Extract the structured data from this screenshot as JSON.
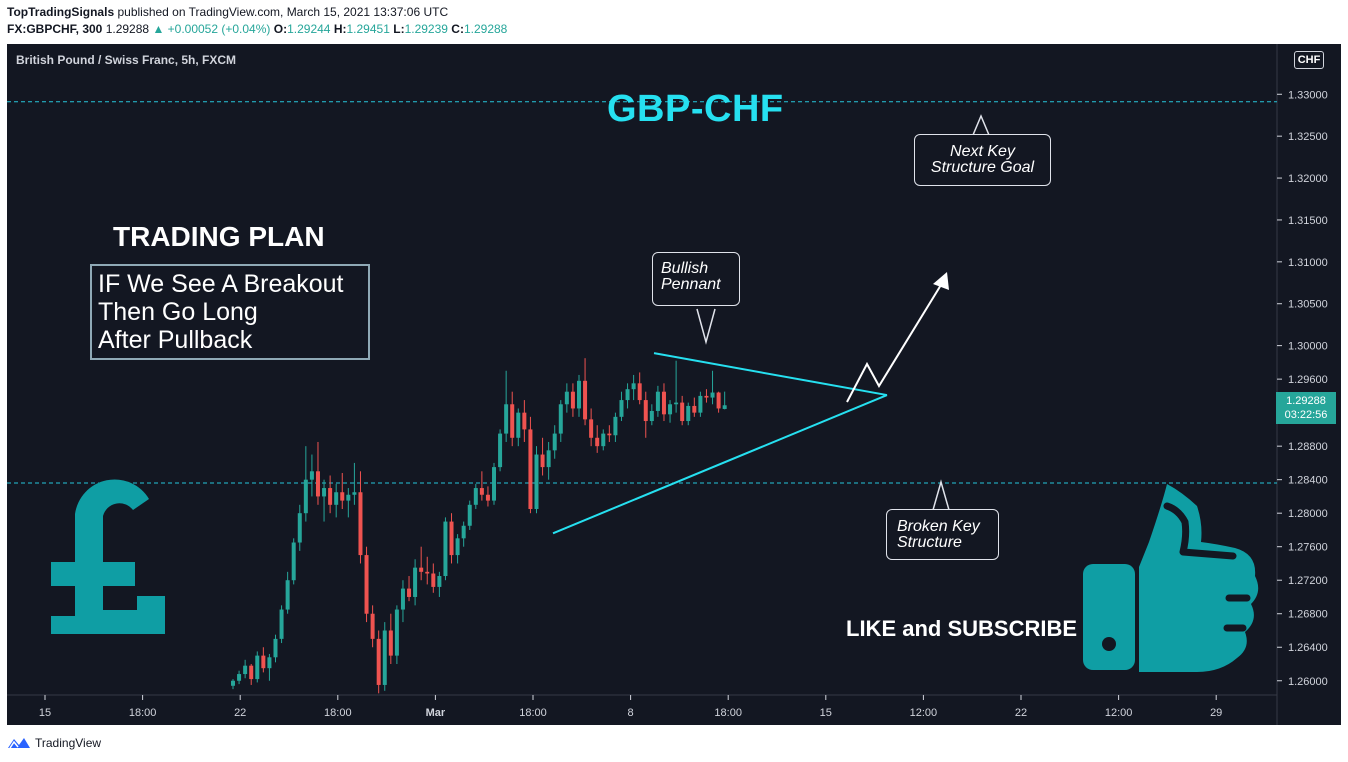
{
  "header": {
    "publisher": "TopTradingSignals",
    "published_text": "published on TradingView.com, March 15, 2021 13:37:06 UTC",
    "symbol_line": "FX:GBPCHF, 300",
    "last_price": "1.29288",
    "change_text": "▲ +0.00052 (+0.04%)",
    "o_label": "O:",
    "o_value": "1.29244",
    "h_label": "H:",
    "h_value": "1.29451",
    "l_label": "L:",
    "l_value": "1.29239",
    "c_label": "C:",
    "c_value": "1.29288"
  },
  "chart_title": "British Pound / Swiss Franc, 5h, FXCM",
  "annotations": {
    "pair": "GBP-CHF",
    "plan_title": "TRADING PLAN",
    "plan_lines": [
      "IF We See A Breakout",
      "Then Go Long",
      "After Pullback"
    ],
    "callout_pennant": [
      "Bullish",
      "Pennant"
    ],
    "callout_goal": [
      "Next Key",
      "Structure Goal"
    ],
    "callout_broken": [
      "Broken Key",
      "Structure"
    ],
    "like_subscribe": "LIKE and SUBSCRIBE",
    "currency_symbol": "£"
  },
  "price_tag": {
    "price": "1.29288",
    "countdown": "03:22:56"
  },
  "currency_tag": "CHF",
  "footer": {
    "brand": "TradingView"
  },
  "colors": {
    "up": "#26a69a",
    "down": "#ef5350",
    "accent": "#26e0f0",
    "bg": "#131722"
  },
  "icons": [
    "pound-sign-icon",
    "thumbs-up-icon",
    "tradingview-logo-icon"
  ],
  "chart_data": {
    "type": "candlestick",
    "title": "British Pound / Swiss Franc, 5h, FXCM",
    "y_axis": {
      "labels": [
        "1.33000",
        "1.32500",
        "1.32000",
        "1.31500",
        "1.31000",
        "1.30500",
        "1.30000",
        "1.29600",
        "1.28800",
        "1.28400",
        "1.28000",
        "1.27600",
        "1.27200",
        "1.26800",
        "1.26400",
        "1.26000"
      ],
      "range": [
        1.2583,
        1.336
      ]
    },
    "x_axis": {
      "labels": [
        "15",
        "18:00",
        "22",
        "18:00",
        "Mar",
        "18:00",
        "8",
        "18:00",
        "15",
        "12:00",
        "22",
        "12:00",
        "29"
      ]
    },
    "horizontal_levels": [
      1.3291,
      1.2836
    ],
    "trendlines": [
      {
        "name": "pennant-upper",
        "from": [
          1.2991
        ],
        "to": [
          1.2941
        ]
      },
      {
        "name": "pennant-lower",
        "from": [
          1.2776
        ],
        "to": [
          1.2941
        ]
      }
    ],
    "candles": [
      [
        1.2594,
        1.2602,
        1.259,
        1.26
      ],
      [
        1.26,
        1.2612,
        1.2596,
        1.2608
      ],
      [
        1.2608,
        1.2625,
        1.2603,
        1.2618
      ],
      [
        1.2618,
        1.262,
        1.2595,
        1.2602
      ],
      [
        1.2602,
        1.2635,
        1.2598,
        1.263
      ],
      [
        1.263,
        1.264,
        1.261,
        1.2615
      ],
      [
        1.2615,
        1.2632,
        1.26,
        1.2628
      ],
      [
        1.2628,
        1.2655,
        1.2622,
        1.265
      ],
      [
        1.265,
        1.269,
        1.2645,
        1.2685
      ],
      [
        1.2685,
        1.273,
        1.268,
        1.272
      ],
      [
        1.272,
        1.277,
        1.2715,
        1.2765
      ],
      [
        1.2765,
        1.281,
        1.2755,
        1.28
      ],
      [
        1.28,
        1.288,
        1.279,
        1.284
      ],
      [
        1.284,
        1.287,
        1.282,
        1.285
      ],
      [
        1.285,
        1.2885,
        1.281,
        1.282
      ],
      [
        1.282,
        1.284,
        1.279,
        1.283
      ],
      [
        1.283,
        1.2845,
        1.28,
        1.281
      ],
      [
        1.281,
        1.2835,
        1.2795,
        1.2825
      ],
      [
        1.2825,
        1.2848,
        1.2805,
        1.2815
      ],
      [
        1.2815,
        1.283,
        1.2795,
        1.2822
      ],
      [
        1.2822,
        1.286,
        1.281,
        1.2825
      ],
      [
        1.2825,
        1.285,
        1.274,
        1.275
      ],
      [
        1.275,
        1.276,
        1.267,
        1.268
      ],
      [
        1.268,
        1.269,
        1.264,
        1.265
      ],
      [
        1.265,
        1.266,
        1.2585,
        1.2595
      ],
      [
        1.2595,
        1.267,
        1.2588,
        1.266
      ],
      [
        1.266,
        1.268,
        1.262,
        1.263
      ],
      [
        1.263,
        1.269,
        1.262,
        1.2685
      ],
      [
        1.2685,
        1.272,
        1.267,
        1.271
      ],
      [
        1.271,
        1.2725,
        1.2695,
        1.27
      ],
      [
        1.27,
        1.2745,
        1.269,
        1.2735
      ],
      [
        1.2735,
        1.276,
        1.272,
        1.273
      ],
      [
        1.273,
        1.2748,
        1.2715,
        1.2728
      ],
      [
        1.2728,
        1.274,
        1.2705,
        1.2712
      ],
      [
        1.2712,
        1.273,
        1.27,
        1.2725
      ],
      [
        1.2725,
        1.2795,
        1.272,
        1.279
      ],
      [
        1.279,
        1.28,
        1.274,
        1.275
      ],
      [
        1.275,
        1.2775,
        1.274,
        1.277
      ],
      [
        1.277,
        1.279,
        1.276,
        1.2785
      ],
      [
        1.2785,
        1.2815,
        1.278,
        1.281
      ],
      [
        1.281,
        1.2835,
        1.2805,
        1.283
      ],
      [
        1.283,
        1.285,
        1.2815,
        1.2822
      ],
      [
        1.2822,
        1.2832,
        1.2808,
        1.2815
      ],
      [
        1.2815,
        1.286,
        1.281,
        1.2855
      ],
      [
        1.2855,
        1.29,
        1.285,
        1.2895
      ],
      [
        1.2895,
        1.297,
        1.2885,
        1.293
      ],
      [
        1.293,
        1.2945,
        1.288,
        1.289
      ],
      [
        1.289,
        1.2925,
        1.288,
        1.292
      ],
      [
        1.292,
        1.2935,
        1.2885,
        1.29
      ],
      [
        1.29,
        1.2915,
        1.28,
        1.2805
      ],
      [
        1.2805,
        1.288,
        1.28,
        1.287
      ],
      [
        1.287,
        1.289,
        1.2845,
        1.2855
      ],
      [
        1.2855,
        1.2885,
        1.284,
        1.2875
      ],
      [
        1.2875,
        1.2905,
        1.2865,
        1.2895
      ],
      [
        1.2895,
        1.2935,
        1.2885,
        1.293
      ],
      [
        1.293,
        1.2955,
        1.292,
        1.2945
      ],
      [
        1.2945,
        1.2955,
        1.2915,
        1.2925
      ],
      [
        1.2925,
        1.2965,
        1.2915,
        1.2958
      ],
      [
        1.2958,
        1.2985,
        1.2905,
        1.2912
      ],
      [
        1.2912,
        1.2925,
        1.288,
        1.289
      ],
      [
        1.289,
        1.2905,
        1.2872,
        1.288
      ],
      [
        1.288,
        1.29,
        1.2875,
        1.2895
      ],
      [
        1.2895,
        1.2905,
        1.2885,
        1.2893
      ],
      [
        1.2893,
        1.292,
        1.2885,
        1.2915
      ],
      [
        1.2915,
        1.2945,
        1.291,
        1.2935
      ],
      [
        1.2935,
        1.2955,
        1.2925,
        1.2948
      ],
      [
        1.2948,
        1.2965,
        1.2935,
        1.2955
      ],
      [
        1.2955,
        1.2968,
        1.293,
        1.2935
      ],
      [
        1.2935,
        1.2945,
        1.289,
        1.291
      ],
      [
        1.291,
        1.293,
        1.2905,
        1.2922
      ],
      [
        1.2922,
        1.2952,
        1.2915,
        1.2945
      ],
      [
        1.2945,
        1.2955,
        1.291,
        1.2918
      ],
      [
        1.2918,
        1.2935,
        1.2908,
        1.293
      ],
      [
        1.293,
        1.2982,
        1.292,
        1.2932
      ],
      [
        1.2932,
        1.294,
        1.2905,
        1.291
      ],
      [
        1.291,
        1.2932,
        1.2905,
        1.2928
      ],
      [
        1.2928,
        1.2938,
        1.2915,
        1.292
      ],
      [
        1.292,
        1.2945,
        1.2915,
        1.294
      ],
      [
        1.294,
        1.2948,
        1.2932,
        1.2938
      ],
      [
        1.2938,
        1.297,
        1.293,
        1.2944
      ],
      [
        1.2944,
        1.2945,
        1.292,
        1.2925
      ],
      [
        1.29244,
        1.29451,
        1.29239,
        1.29288
      ]
    ]
  }
}
